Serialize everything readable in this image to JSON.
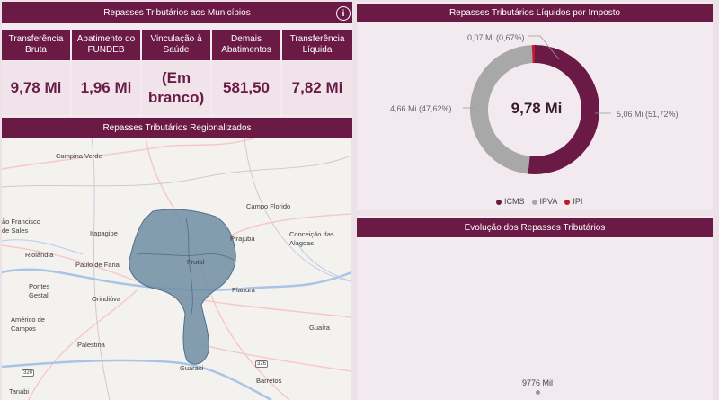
{
  "municipios": {
    "title": "Repasses Tributários aos Municípios",
    "kpis": [
      {
        "label": "Transferência Bruta",
        "value": "9,78 Mi"
      },
      {
        "label": "Abatimento do FUNDEB",
        "value": "1,96 Mi"
      },
      {
        "label": "Vinculação à Saúde",
        "value": "(Em branco)"
      },
      {
        "label": "Demais Abatimentos",
        "value": "581,50"
      },
      {
        "label": "Transferência Líquida",
        "value": "7,82 Mi"
      }
    ]
  },
  "regional": {
    "title": "Repasses Tributários Regionalizados",
    "places": [
      "Campina Verde",
      "Campo Florido",
      "ão Francisco de Sales",
      "Itapagipe",
      "Pirajuba",
      "Conceição das Alagoas",
      "Riolândia",
      "Paulo de Faria",
      "Frutal",
      "Planura",
      "Pontes Gestal",
      "Orindiúva",
      "Américo de Campos",
      "Guaíra",
      "Palestina",
      "Guaraci",
      "Barretos",
      "Tanabi"
    ],
    "road_shields": [
      "320",
      "326"
    ]
  },
  "liquidos": {
    "title": "Repasses Tributários Líquidos por Imposto",
    "center_value": "9,78 Mi",
    "colors": {
      "ICMS": "#6b1a45",
      "IPVA": "#a8a8a8",
      "IPI": "#c0182c"
    }
  },
  "chart_data": [
    {
      "type": "pie",
      "title": "Repasses Tributários Líquidos por Imposto",
      "categories": [
        "ICMS",
        "IPVA",
        "IPI"
      ],
      "values": [
        5.06,
        4.66,
        0.07
      ],
      "data_labels": [
        "5,06 Mi (51,72%)",
        "4,66 Mi (47,62%)",
        "0,07 Mi (0,67%)"
      ],
      "legend_position": "bottom",
      "donut": true
    },
    {
      "type": "line",
      "title": "Evolução dos Repasses Tributários",
      "series": [
        {
          "values": [
            9776
          ]
        }
      ],
      "data_labels": [
        "9776 Mil"
      ]
    }
  ],
  "evolucao": {
    "title": "Evolução dos Repasses Tributários",
    "point_label": "9776 Mil"
  }
}
